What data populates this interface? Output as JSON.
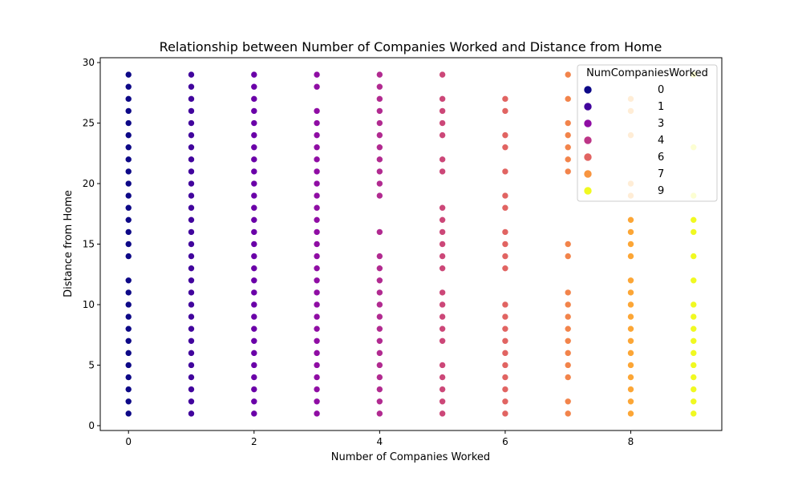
{
  "chart_data": {
    "type": "scatter",
    "title": "Relationship between Number of Companies Worked and Distance from Home",
    "xlabel": "Number of Companies Worked",
    "ylabel": "Distance from Home",
    "xlim": [
      -0.45,
      9.45
    ],
    "ylim": [
      -0.4,
      30.4
    ],
    "xticks": [
      0,
      2,
      4,
      6,
      8
    ],
    "yticks": [
      0,
      5,
      10,
      15,
      20,
      25,
      30
    ],
    "grid": false,
    "legend": {
      "title": "NumCompaniesWorked",
      "placement": "top-right",
      "entries": [
        {
          "label": "0",
          "color": "#0d0887"
        },
        {
          "label": "1",
          "color": "#41049d"
        },
        {
          "label": "3",
          "color": "#8f0da4"
        },
        {
          "label": "4",
          "color": "#bc3587"
        },
        {
          "label": "6",
          "color": "#e16462"
        },
        {
          "label": "7",
          "color": "#f89540"
        },
        {
          "label": "9",
          "color": "#f0f921"
        }
      ]
    },
    "series": [
      {
        "x": 0,
        "color": "#0d0887",
        "y": [
          1,
          2,
          3,
          4,
          5,
          6,
          7,
          8,
          9,
          10,
          11,
          12,
          14,
          15,
          16,
          17,
          18,
          19,
          20,
          21,
          22,
          23,
          24,
          25,
          26,
          27,
          28,
          29
        ]
      },
      {
        "x": 1,
        "color": "#41049d",
        "y": [
          1,
          2,
          3,
          4,
          5,
          6,
          7,
          8,
          9,
          10,
          11,
          12,
          13,
          14,
          15,
          16,
          17,
          18,
          19,
          20,
          21,
          22,
          23,
          24,
          25,
          26,
          27,
          28,
          29
        ]
      },
      {
        "x": 2,
        "color": "#6a00a8",
        "y": [
          1,
          2,
          3,
          4,
          5,
          6,
          7,
          8,
          9,
          10,
          11,
          12,
          13,
          14,
          15,
          16,
          17,
          18,
          19,
          20,
          21,
          22,
          23,
          24,
          25,
          26,
          27,
          28,
          29
        ]
      },
      {
        "x": 3,
        "color": "#8f0da4",
        "y": [
          1,
          2,
          3,
          4,
          5,
          6,
          7,
          8,
          9,
          10,
          11,
          12,
          13,
          14,
          15,
          16,
          17,
          18,
          19,
          20,
          21,
          22,
          23,
          24,
          25,
          26,
          28,
          29
        ]
      },
      {
        "x": 4,
        "color": "#b12a90",
        "y": [
          1,
          2,
          3,
          4,
          5,
          6,
          7,
          8,
          9,
          10,
          11,
          12,
          13,
          14,
          16,
          19,
          20,
          21,
          22,
          23,
          24,
          25,
          26,
          27,
          28,
          29
        ]
      },
      {
        "x": 5,
        "color": "#cc4778",
        "y": [
          1,
          2,
          3,
          4,
          5,
          7,
          8,
          9,
          10,
          11,
          13,
          14,
          15,
          16,
          17,
          18,
          21,
          22,
          24,
          25,
          26,
          27,
          29
        ]
      },
      {
        "x": 6,
        "color": "#e16462",
        "y": [
          1,
          2,
          3,
          4,
          5,
          6,
          7,
          8,
          9,
          10,
          13,
          14,
          15,
          16,
          18,
          19,
          21,
          23,
          24,
          26,
          27
        ]
      },
      {
        "x": 7,
        "color": "#f2844b",
        "y": [
          1,
          2,
          4,
          5,
          6,
          7,
          8,
          9,
          10,
          11,
          14,
          15,
          21,
          22,
          23,
          24,
          25,
          27,
          29
        ]
      },
      {
        "x": 8,
        "color": "#fca636",
        "y": [
          1,
          2,
          3,
          4,
          5,
          6,
          7,
          8,
          9,
          10,
          11,
          12,
          14,
          15,
          16,
          17,
          19,
          20,
          24,
          26,
          27
        ]
      },
      {
        "x": 9,
        "color": "#f0f921",
        "y": [
          1,
          2,
          3,
          4,
          5,
          6,
          7,
          8,
          9,
          10,
          12,
          14,
          16,
          17,
          19,
          23,
          29
        ]
      }
    ]
  }
}
